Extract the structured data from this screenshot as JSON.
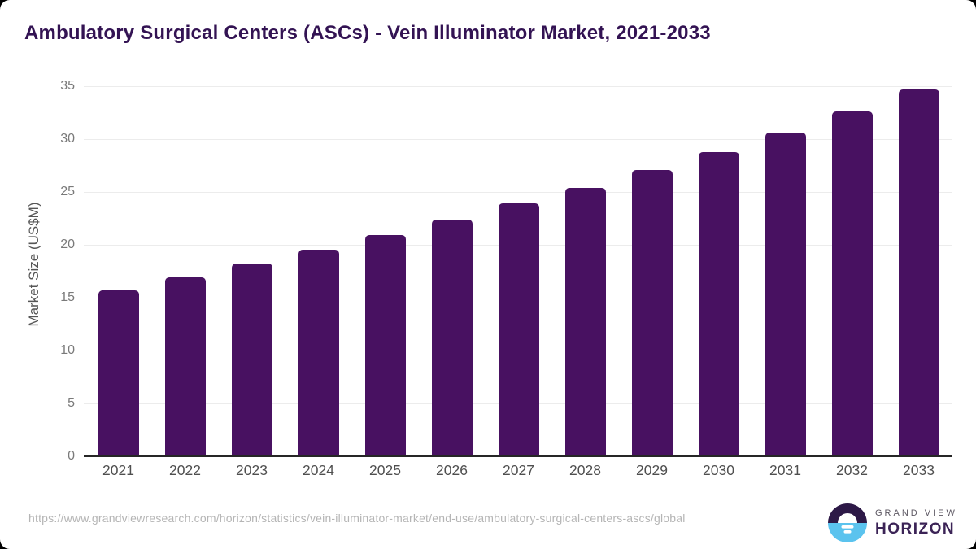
{
  "title": "Ambulatory Surgical Centers (ASCs) - Vein Illuminator Market, 2021-2033",
  "chart_data": {
    "type": "bar",
    "title": "Ambulatory Surgical Centers (ASCs) - Vein Illuminator Market, 2021-2033",
    "categories": [
      "2021",
      "2022",
      "2023",
      "2024",
      "2025",
      "2026",
      "2027",
      "2028",
      "2029",
      "2030",
      "2031",
      "2032",
      "2033"
    ],
    "values": [
      15.7,
      16.9,
      18.2,
      19.5,
      20.9,
      22.4,
      23.9,
      25.4,
      27.1,
      28.8,
      30.6,
      32.6,
      34.7
    ],
    "xlabel": "",
    "ylabel": "Market Size (US$M)",
    "ylim": [
      0,
      35
    ],
    "yticks": [
      0,
      5,
      10,
      15,
      20,
      25,
      30,
      35
    ],
    "grid": "horizontal",
    "legend": "none",
    "bar_color": "#481161",
    "gridline_color": "#ececec",
    "axis_line_color": "#262626"
  },
  "footer": {
    "source_url": "https://www.grandviewresearch.com/horizon/statistics/vein-illuminator-market/end-use/ambulatory-surgical-centers-ascs/global",
    "logo": {
      "line1": "GRAND VIEW",
      "line2": "HORIZON",
      "icon": "horizon-sun-circle",
      "icon_dark_color": "#2d1947",
      "icon_blue_color": "#5bc3ee"
    }
  },
  "colors": {
    "title": "#331353",
    "background": "#ffffff",
    "page_backdrop": "#000000",
    "ytick_label": "#7a7a7a",
    "xtick_label": "#4f4f4f",
    "y_axis_title": "#565656",
    "source_url": "#b5b5b5"
  }
}
